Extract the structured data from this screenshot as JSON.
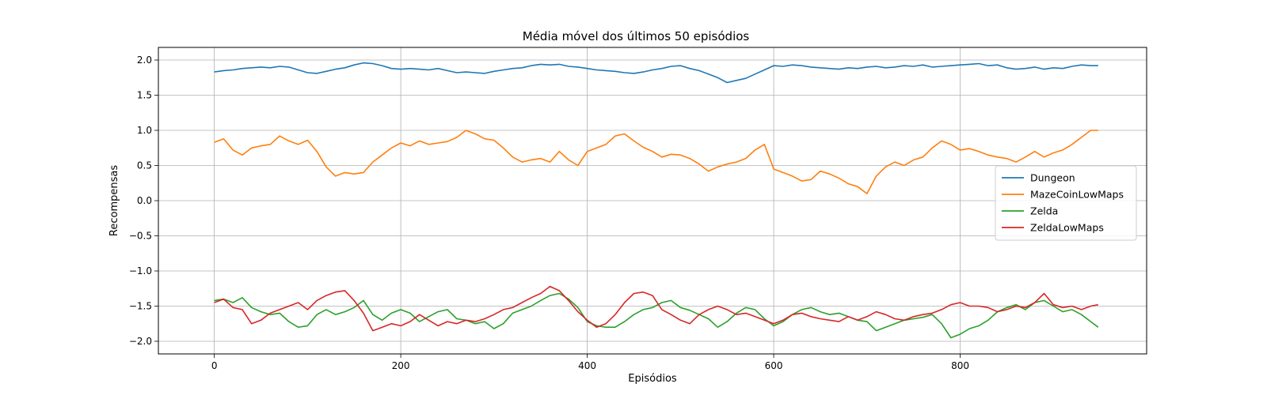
{
  "chart_data": {
    "type": "line",
    "title": "Média móvel dos últimos 50 episódios",
    "xlabel": "Episódios",
    "ylabel": "Recompensas",
    "xlim": [
      -60,
      1000
    ],
    "ylim": [
      -2.18,
      2.18
    ],
    "xticks": [
      0,
      200,
      400,
      600,
      800
    ],
    "yticks": [
      2.0,
      1.5,
      1.0,
      0.5,
      0.0,
      -0.5,
      -1.0,
      -1.5,
      -2.0
    ],
    "xtick_labels": [
      "0",
      "200",
      "400",
      "600",
      "800"
    ],
    "ytick_labels": [
      "2.0",
      "1.5",
      "1.0",
      "0.5",
      "0.0",
      "−0.5",
      "−1.0",
      "−1.5",
      "−2.0"
    ],
    "grid": true,
    "legend_position": "center-right",
    "series": [
      {
        "name": "Dungeon",
        "color": "#1f77b4",
        "x": [
          0,
          10,
          20,
          30,
          40,
          50,
          60,
          70,
          80,
          90,
          100,
          110,
          120,
          130,
          140,
          150,
          160,
          170,
          180,
          190,
          200,
          210,
          220,
          230,
          240,
          250,
          260,
          270,
          280,
          290,
          300,
          310,
          320,
          330,
          340,
          350,
          360,
          370,
          380,
          390,
          400,
          410,
          420,
          430,
          440,
          450,
          460,
          470,
          480,
          490,
          500,
          510,
          520,
          530,
          540,
          550,
          560,
          570,
          580,
          590,
          600,
          610,
          620,
          630,
          640,
          650,
          660,
          670,
          680,
          690,
          700,
          710,
          720,
          730,
          740,
          750,
          760,
          770,
          780,
          790,
          800,
          810,
          820,
          830,
          840,
          850,
          860,
          870,
          880,
          890,
          900,
          910,
          920,
          930,
          940,
          948
        ],
        "values": [
          1.83,
          1.85,
          1.86,
          1.88,
          1.89,
          1.9,
          1.89,
          1.91,
          1.9,
          1.86,
          1.82,
          1.81,
          1.84,
          1.87,
          1.89,
          1.93,
          1.96,
          1.95,
          1.92,
          1.88,
          1.87,
          1.88,
          1.87,
          1.86,
          1.88,
          1.85,
          1.82,
          1.83,
          1.82,
          1.81,
          1.84,
          1.86,
          1.88,
          1.89,
          1.92,
          1.94,
          1.93,
          1.94,
          1.91,
          1.9,
          1.88,
          1.86,
          1.85,
          1.84,
          1.82,
          1.81,
          1.83,
          1.86,
          1.88,
          1.91,
          1.92,
          1.88,
          1.85,
          1.8,
          1.75,
          1.68,
          1.71,
          1.74,
          1.8,
          1.86,
          1.92,
          1.91,
          1.93,
          1.92,
          1.9,
          1.89,
          1.88,
          1.87,
          1.89,
          1.88,
          1.9,
          1.91,
          1.89,
          1.9,
          1.92,
          1.91,
          1.93,
          1.9,
          1.91,
          1.92,
          1.93,
          1.94,
          1.95,
          1.92,
          1.93,
          1.89,
          1.87,
          1.88,
          1.9,
          1.87,
          1.89,
          1.88,
          1.91,
          1.93,
          1.92,
          1.92
        ]
      },
      {
        "name": "MazeCoinLowMaps",
        "color": "#ff7f0e",
        "x": [
          0,
          10,
          20,
          30,
          40,
          50,
          60,
          70,
          80,
          90,
          100,
          110,
          120,
          130,
          140,
          150,
          160,
          170,
          180,
          190,
          200,
          210,
          220,
          230,
          240,
          250,
          260,
          270,
          280,
          290,
          300,
          310,
          320,
          330,
          340,
          350,
          360,
          370,
          380,
          390,
          400,
          410,
          420,
          430,
          440,
          450,
          460,
          470,
          480,
          490,
          500,
          510,
          520,
          530,
          540,
          550,
          560,
          570,
          580,
          590,
          600,
          610,
          620,
          630,
          640,
          650,
          660,
          670,
          680,
          690,
          700,
          710,
          720,
          730,
          740,
          750,
          760,
          770,
          780,
          790,
          800,
          810,
          820,
          830,
          840,
          850,
          860,
          870,
          880,
          890,
          900,
          910,
          920,
          930,
          940,
          948
        ],
        "values": [
          0.83,
          0.88,
          0.72,
          0.65,
          0.75,
          0.78,
          0.8,
          0.92,
          0.85,
          0.8,
          0.86,
          0.7,
          0.48,
          0.35,
          0.4,
          0.38,
          0.4,
          0.55,
          0.65,
          0.75,
          0.82,
          0.78,
          0.85,
          0.8,
          0.82,
          0.84,
          0.9,
          1.0,
          0.95,
          0.88,
          0.86,
          0.75,
          0.62,
          0.55,
          0.58,
          0.6,
          0.55,
          0.7,
          0.58,
          0.5,
          0.7,
          0.75,
          0.8,
          0.92,
          0.95,
          0.85,
          0.76,
          0.7,
          0.62,
          0.66,
          0.65,
          0.6,
          0.52,
          0.42,
          0.48,
          0.52,
          0.55,
          0.6,
          0.72,
          0.8,
          0.45,
          0.4,
          0.35,
          0.28,
          0.3,
          0.42,
          0.38,
          0.32,
          0.24,
          0.2,
          0.1,
          0.35,
          0.48,
          0.55,
          0.5,
          0.58,
          0.62,
          0.75,
          0.85,
          0.8,
          0.72,
          0.74,
          0.7,
          0.65,
          0.62,
          0.6,
          0.55,
          0.62,
          0.7,
          0.62,
          0.68,
          0.72,
          0.8,
          0.9,
          1.0,
          1.0
        ]
      },
      {
        "name": "Zelda",
        "color": "#2ca02c",
        "x": [
          0,
          10,
          20,
          30,
          40,
          50,
          60,
          70,
          80,
          90,
          100,
          110,
          120,
          130,
          140,
          150,
          160,
          170,
          180,
          190,
          200,
          210,
          220,
          230,
          240,
          250,
          260,
          270,
          280,
          290,
          300,
          310,
          320,
          330,
          340,
          350,
          360,
          370,
          380,
          390,
          400,
          410,
          420,
          430,
          440,
          450,
          460,
          470,
          480,
          490,
          500,
          510,
          520,
          530,
          540,
          550,
          560,
          570,
          580,
          590,
          600,
          610,
          620,
          630,
          640,
          650,
          660,
          670,
          680,
          690,
          700,
          710,
          720,
          730,
          740,
          750,
          760,
          770,
          780,
          790,
          800,
          810,
          820,
          830,
          840,
          850,
          860,
          870,
          880,
          890,
          900,
          910,
          920,
          930,
          940,
          948
        ],
        "values": [
          -1.42,
          -1.4,
          -1.45,
          -1.38,
          -1.52,
          -1.58,
          -1.62,
          -1.6,
          -1.72,
          -1.8,
          -1.78,
          -1.62,
          -1.55,
          -1.62,
          -1.58,
          -1.52,
          -1.42,
          -1.62,
          -1.7,
          -1.6,
          -1.55,
          -1.6,
          -1.72,
          -1.65,
          -1.58,
          -1.55,
          -1.68,
          -1.7,
          -1.75,
          -1.72,
          -1.82,
          -1.75,
          -1.6,
          -1.55,
          -1.5,
          -1.42,
          -1.35,
          -1.32,
          -1.4,
          -1.52,
          -1.72,
          -1.78,
          -1.8,
          -1.8,
          -1.72,
          -1.62,
          -1.55,
          -1.52,
          -1.45,
          -1.42,
          -1.52,
          -1.56,
          -1.62,
          -1.68,
          -1.8,
          -1.72,
          -1.6,
          -1.52,
          -1.55,
          -1.68,
          -1.78,
          -1.72,
          -1.62,
          -1.55,
          -1.52,
          -1.58,
          -1.62,
          -1.6,
          -1.65,
          -1.7,
          -1.72,
          -1.85,
          -1.8,
          -1.75,
          -1.7,
          -1.68,
          -1.66,
          -1.62,
          -1.75,
          -1.95,
          -1.9,
          -1.82,
          -1.78,
          -1.7,
          -1.58,
          -1.52,
          -1.48,
          -1.55,
          -1.45,
          -1.42,
          -1.5,
          -1.58,
          -1.55,
          -1.62,
          -1.72,
          -1.8
        ]
      },
      {
        "name": "ZeldaLowMaps",
        "color": "#d62728",
        "x": [
          0,
          10,
          20,
          30,
          40,
          50,
          60,
          70,
          80,
          90,
          100,
          110,
          120,
          130,
          140,
          150,
          160,
          170,
          180,
          190,
          200,
          210,
          220,
          230,
          240,
          250,
          260,
          270,
          280,
          290,
          300,
          310,
          320,
          330,
          340,
          350,
          360,
          370,
          380,
          390,
          400,
          410,
          420,
          430,
          440,
          450,
          460,
          470,
          480,
          490,
          500,
          510,
          520,
          530,
          540,
          550,
          560,
          570,
          580,
          590,
          600,
          610,
          620,
          630,
          640,
          650,
          660,
          670,
          680,
          690,
          700,
          710,
          720,
          730,
          740,
          750,
          760,
          770,
          780,
          790,
          800,
          810,
          820,
          830,
          840,
          850,
          860,
          870,
          880,
          890,
          900,
          910,
          920,
          930,
          940,
          948
        ],
        "values": [
          -1.45,
          -1.4,
          -1.52,
          -1.55,
          -1.75,
          -1.7,
          -1.6,
          -1.55,
          -1.5,
          -1.45,
          -1.55,
          -1.42,
          -1.35,
          -1.3,
          -1.28,
          -1.42,
          -1.6,
          -1.85,
          -1.8,
          -1.75,
          -1.78,
          -1.72,
          -1.62,
          -1.7,
          -1.78,
          -1.72,
          -1.75,
          -1.7,
          -1.72,
          -1.68,
          -1.62,
          -1.55,
          -1.52,
          -1.45,
          -1.38,
          -1.32,
          -1.22,
          -1.28,
          -1.42,
          -1.58,
          -1.7,
          -1.8,
          -1.75,
          -1.62,
          -1.45,
          -1.32,
          -1.3,
          -1.35,
          -1.55,
          -1.62,
          -1.7,
          -1.75,
          -1.62,
          -1.55,
          -1.5,
          -1.55,
          -1.62,
          -1.6,
          -1.65,
          -1.7,
          -1.75,
          -1.7,
          -1.62,
          -1.6,
          -1.65,
          -1.68,
          -1.7,
          -1.72,
          -1.65,
          -1.7,
          -1.65,
          -1.58,
          -1.62,
          -1.68,
          -1.7,
          -1.65,
          -1.62,
          -1.6,
          -1.55,
          -1.48,
          -1.45,
          -1.5,
          -1.5,
          -1.52,
          -1.58,
          -1.55,
          -1.5,
          -1.52,
          -1.45,
          -1.32,
          -1.48,
          -1.52,
          -1.5,
          -1.55,
          -1.5,
          -1.48
        ]
      }
    ]
  }
}
